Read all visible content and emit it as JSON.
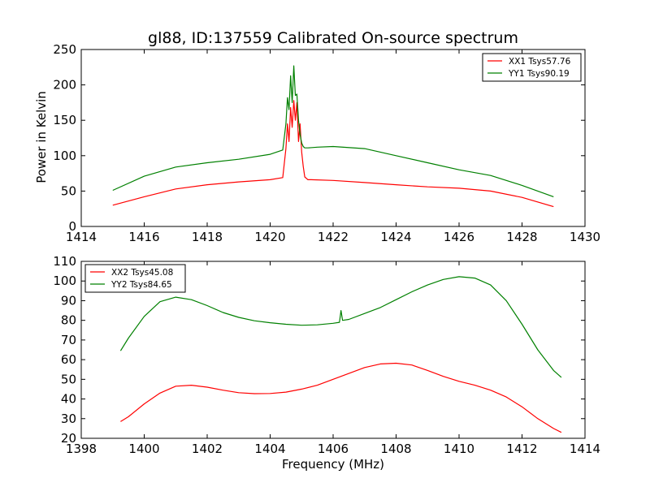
{
  "chart_data": [
    {
      "type": "line",
      "title": "gl88, ID:137559 Calibrated On-source spectrum",
      "xlabel": "",
      "ylabel": "Power in Kelvin",
      "xlim": [
        1414,
        1430
      ],
      "ylim": [
        0,
        250
      ],
      "xticks": [
        "1414",
        "1416",
        "1418",
        "1420",
        "1422",
        "1424",
        "1426",
        "1428",
        "1430"
      ],
      "yticks": [
        "0",
        "50",
        "100",
        "150",
        "200",
        "250"
      ],
      "grid": false,
      "legend": "top-right",
      "series": [
        {
          "name": "XX1 Tsys57.76",
          "color": "#ff0000",
          "x": [
            1415.0,
            1416.0,
            1417.0,
            1418.0,
            1419.0,
            1420.0,
            1420.4,
            1420.5,
            1420.55,
            1420.6,
            1420.65,
            1420.7,
            1420.75,
            1420.8,
            1420.85,
            1420.9,
            1420.95,
            1421.0,
            1421.05,
            1421.1,
            1421.2,
            1421.3,
            1422.0,
            1423.0,
            1424.0,
            1425.0,
            1426.0,
            1427.0,
            1428.0,
            1429.0
          ],
          "y": [
            30,
            42,
            53,
            59,
            63,
            66,
            69,
            110,
            145,
            120,
            168,
            140,
            178,
            150,
            175,
            120,
            145,
            105,
            85,
            70,
            66,
            66,
            65,
            62,
            59,
            56,
            54,
            50,
            41,
            28
          ]
        },
        {
          "name": "YY1 Tsys90.19",
          "color": "#008000",
          "x": [
            1415.0,
            1416.0,
            1417.0,
            1418.0,
            1419.0,
            1420.0,
            1420.4,
            1420.5,
            1420.55,
            1420.6,
            1420.65,
            1420.7,
            1420.75,
            1420.8,
            1420.85,
            1420.9,
            1420.95,
            1421.0,
            1421.05,
            1421.1,
            1421.2,
            1421.5,
            1422.0,
            1423.0,
            1424.0,
            1425.0,
            1426.0,
            1427.0,
            1428.0,
            1429.0
          ],
          "y": [
            51,
            71,
            84,
            90,
            95,
            102,
            108,
            145,
            182,
            165,
            213,
            175,
            227,
            185,
            187,
            150,
            130,
            118,
            113,
            111,
            111,
            112,
            113,
            110,
            100,
            90,
            80,
            72,
            58,
            42
          ]
        }
      ]
    },
    {
      "type": "line",
      "title": "",
      "xlabel": "Frequency (MHz)",
      "ylabel": "",
      "xlim": [
        1398,
        1414
      ],
      "ylim": [
        20,
        110
      ],
      "xticks": [
        "1398",
        "1400",
        "1402",
        "1404",
        "1406",
        "1408",
        "1410",
        "1412",
        "1414"
      ],
      "yticks": [
        "20",
        "30",
        "40",
        "50",
        "60",
        "70",
        "80",
        "90",
        "100",
        "110"
      ],
      "grid": false,
      "legend": "top-left",
      "series": [
        {
          "name": "XX2 Tsys45.08",
          "color": "#ff0000",
          "x": [
            1399.25,
            1399.5,
            1400.0,
            1400.5,
            1401.0,
            1401.5,
            1402.0,
            1402.5,
            1403.0,
            1403.5,
            1404.0,
            1404.5,
            1405.0,
            1405.5,
            1406.0,
            1406.5,
            1407.0,
            1407.5,
            1408.0,
            1408.5,
            1409.0,
            1409.5,
            1410.0,
            1410.5,
            1411.0,
            1411.5,
            1412.0,
            1412.5,
            1413.0,
            1413.25
          ],
          "y": [
            28.5,
            31,
            37.5,
            43,
            46.5,
            47,
            46,
            44.5,
            43.2,
            42.7,
            42.8,
            43.5,
            45,
            47,
            50,
            53,
            56,
            57.8,
            58.2,
            57.3,
            54.5,
            51.5,
            49,
            47,
            44.5,
            41,
            36,
            30,
            25,
            23
          ]
        },
        {
          "name": "YY2 Tsys84.65",
          "color": "#008000",
          "x": [
            1399.25,
            1399.5,
            1400.0,
            1400.5,
            1401.0,
            1401.5,
            1402.0,
            1402.5,
            1403.0,
            1403.5,
            1404.0,
            1404.5,
            1405.0,
            1405.5,
            1406.0,
            1406.2,
            1406.25,
            1406.3,
            1406.5,
            1407.0,
            1407.5,
            1408.0,
            1408.5,
            1409.0,
            1409.5,
            1410.0,
            1410.5,
            1411.0,
            1411.5,
            1412.0,
            1412.5,
            1413.0,
            1413.25
          ],
          "y": [
            64.5,
            71,
            82,
            89.5,
            91.8,
            90.5,
            87.5,
            84,
            81.5,
            79.8,
            78.8,
            78,
            77.5,
            77.7,
            78.5,
            79,
            85,
            80,
            80.5,
            83.5,
            86.5,
            90.5,
            94.5,
            98,
            100.8,
            102.2,
            101.5,
            98,
            90,
            78,
            65,
            54.5,
            51
          ]
        }
      ]
    }
  ]
}
